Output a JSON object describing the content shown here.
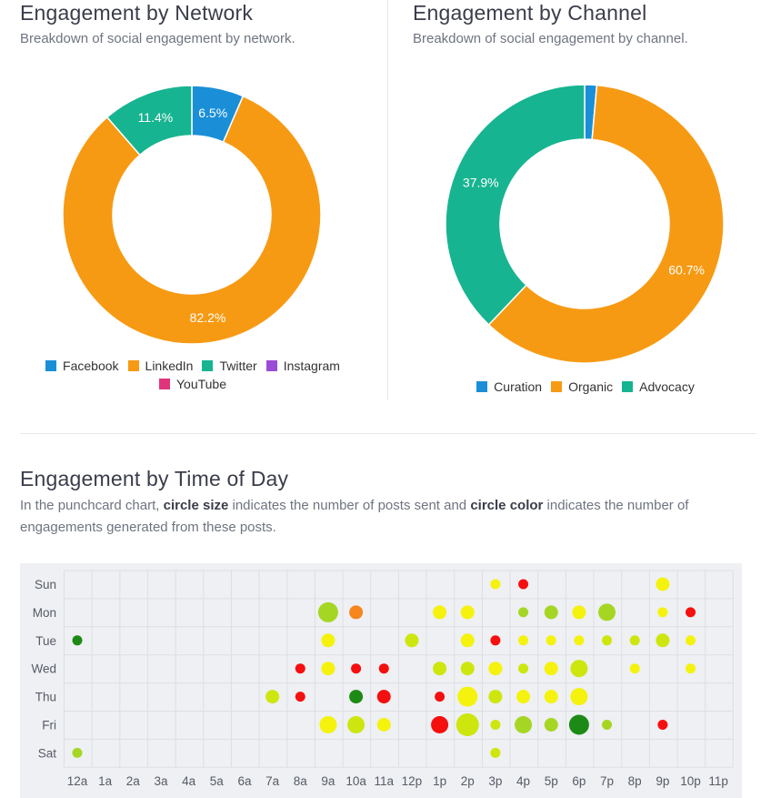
{
  "network": {
    "title": "Engagement by Network",
    "subtitle": "Breakdown of social engagement by network."
  },
  "channel": {
    "title": "Engagement by Channel",
    "subtitle": "Breakdown of social engagement by channel."
  },
  "time_of_day": {
    "title": "Engagement by Time of Day",
    "desc_1": "In the punchcard chart, ",
    "desc_bold_1": "circle size",
    "desc_2": " indicates the number of posts sent and ",
    "desc_bold_2": "circle color",
    "desc_3": " indicates the number of engagements generated from these posts."
  },
  "colors": {
    "facebook": "#1a8fd8",
    "linkedin": "#f79a13",
    "twitter": "#17b491",
    "instagram": "#9b4cd6",
    "youtube": "#e0357a",
    "red": "#f50f0f",
    "orange": "#f7861e",
    "yellow": "#f5f20e",
    "lime": "#cde60e",
    "yellowgreen": "#a6d624",
    "green": "#74b81f",
    "darkgreen": "#1e8a16"
  },
  "chart_data": [
    {
      "type": "pie",
      "variant": "donut",
      "title": "Engagement by Network",
      "legend": [
        "Facebook",
        "LinkedIn",
        "Twitter",
        "Instagram",
        "YouTube"
      ],
      "slices": [
        {
          "label": "Facebook",
          "value": 6.5,
          "display": "6.5%",
          "color": "#1a8fd8"
        },
        {
          "label": "LinkedIn",
          "value": 82.2,
          "display": "82.2%",
          "color": "#f79a13"
        },
        {
          "label": "Twitter",
          "value": 11.4,
          "display": "11.4%",
          "color": "#17b491"
        },
        {
          "label": "Instagram",
          "value": 0,
          "display": "",
          "color": "#9b4cd6"
        },
        {
          "label": "YouTube",
          "value": 0,
          "display": "",
          "color": "#e0357a"
        }
      ]
    },
    {
      "type": "pie",
      "variant": "donut",
      "title": "Engagement by Channel",
      "legend": [
        "Curation",
        "Organic",
        "Advocacy"
      ],
      "slices": [
        {
          "label": "Curation",
          "value": 1.4,
          "display": "",
          "color": "#1a8fd8"
        },
        {
          "label": "Organic",
          "value": 60.7,
          "display": "60.7%",
          "color": "#f79a13"
        },
        {
          "label": "Advocacy",
          "value": 37.9,
          "display": "37.9%",
          "color": "#17b491"
        }
      ]
    },
    {
      "type": "scatter",
      "variant": "punchcard",
      "title": "Engagement by Time of Day",
      "days": [
        "Sun",
        "Mon",
        "Tue",
        "Wed",
        "Thu",
        "Fri",
        "Sat"
      ],
      "hours": [
        "12a",
        "1a",
        "2a",
        "3a",
        "4a",
        "5a",
        "6a",
        "7a",
        "8a",
        "9a",
        "10a",
        "11a",
        "12p",
        "1p",
        "2p",
        "3p",
        "4p",
        "5p",
        "6p",
        "7p",
        "8p",
        "9p",
        "10p",
        "11p"
      ],
      "size_scale": "posts sent (1 = smallest, 5 = largest)",
      "points": [
        {
          "day": "Sun",
          "hour": "3p",
          "posts": 1,
          "engagement": "yellow"
        },
        {
          "day": "Sun",
          "hour": "4p",
          "posts": 1,
          "engagement": "red"
        },
        {
          "day": "Sun",
          "hour": "9p",
          "posts": 2,
          "engagement": "yellow"
        },
        {
          "day": "Mon",
          "hour": "9a",
          "posts": 4,
          "engagement": "yellowgreen"
        },
        {
          "day": "Mon",
          "hour": "10a",
          "posts": 2,
          "engagement": "orange"
        },
        {
          "day": "Mon",
          "hour": "1p",
          "posts": 2,
          "engagement": "yellow"
        },
        {
          "day": "Mon",
          "hour": "2p",
          "posts": 2,
          "engagement": "yellow"
        },
        {
          "day": "Mon",
          "hour": "4p",
          "posts": 1,
          "engagement": "yellowgreen"
        },
        {
          "day": "Mon",
          "hour": "5p",
          "posts": 2,
          "engagement": "yellowgreen"
        },
        {
          "day": "Mon",
          "hour": "6p",
          "posts": 2,
          "engagement": "yellow"
        },
        {
          "day": "Mon",
          "hour": "7p",
          "posts": 3,
          "engagement": "yellowgreen"
        },
        {
          "day": "Mon",
          "hour": "9p",
          "posts": 1,
          "engagement": "yellow"
        },
        {
          "day": "Mon",
          "hour": "10p",
          "posts": 1,
          "engagement": "red"
        },
        {
          "day": "Tue",
          "hour": "12a",
          "posts": 1,
          "engagement": "darkgreen"
        },
        {
          "day": "Tue",
          "hour": "9a",
          "posts": 2,
          "engagement": "yellow"
        },
        {
          "day": "Tue",
          "hour": "12p",
          "posts": 2,
          "engagement": "lime"
        },
        {
          "day": "Tue",
          "hour": "2p",
          "posts": 2,
          "engagement": "yellow"
        },
        {
          "day": "Tue",
          "hour": "3p",
          "posts": 1,
          "engagement": "red"
        },
        {
          "day": "Tue",
          "hour": "4p",
          "posts": 1,
          "engagement": "yellow"
        },
        {
          "day": "Tue",
          "hour": "5p",
          "posts": 1,
          "engagement": "yellow"
        },
        {
          "day": "Tue",
          "hour": "6p",
          "posts": 1,
          "engagement": "yellow"
        },
        {
          "day": "Tue",
          "hour": "7p",
          "posts": 1,
          "engagement": "lime"
        },
        {
          "day": "Tue",
          "hour": "8p",
          "posts": 1,
          "engagement": "lime"
        },
        {
          "day": "Tue",
          "hour": "9p",
          "posts": 2,
          "engagement": "lime"
        },
        {
          "day": "Tue",
          "hour": "10p",
          "posts": 1,
          "engagement": "yellow"
        },
        {
          "day": "Wed",
          "hour": "8a",
          "posts": 1,
          "engagement": "red"
        },
        {
          "day": "Wed",
          "hour": "9a",
          "posts": 2,
          "engagement": "yellow"
        },
        {
          "day": "Wed",
          "hour": "10a",
          "posts": 1,
          "engagement": "red"
        },
        {
          "day": "Wed",
          "hour": "11a",
          "posts": 1,
          "engagement": "red"
        },
        {
          "day": "Wed",
          "hour": "1p",
          "posts": 2,
          "engagement": "lime"
        },
        {
          "day": "Wed",
          "hour": "2p",
          "posts": 2,
          "engagement": "lime"
        },
        {
          "day": "Wed",
          "hour": "3p",
          "posts": 2,
          "engagement": "yellow"
        },
        {
          "day": "Wed",
          "hour": "4p",
          "posts": 1,
          "engagement": "lime"
        },
        {
          "day": "Wed",
          "hour": "5p",
          "posts": 2,
          "engagement": "yellow"
        },
        {
          "day": "Wed",
          "hour": "6p",
          "posts": 3,
          "engagement": "lime"
        },
        {
          "day": "Wed",
          "hour": "8p",
          "posts": 1,
          "engagement": "yellow"
        },
        {
          "day": "Wed",
          "hour": "10p",
          "posts": 1,
          "engagement": "yellow"
        },
        {
          "day": "Thu",
          "hour": "7a",
          "posts": 2,
          "engagement": "lime"
        },
        {
          "day": "Thu",
          "hour": "8a",
          "posts": 1,
          "engagement": "red"
        },
        {
          "day": "Thu",
          "hour": "10a",
          "posts": 2,
          "engagement": "darkgreen"
        },
        {
          "day": "Thu",
          "hour": "11a",
          "posts": 2,
          "engagement": "red"
        },
        {
          "day": "Thu",
          "hour": "1p",
          "posts": 1,
          "engagement": "red"
        },
        {
          "day": "Thu",
          "hour": "2p",
          "posts": 4,
          "engagement": "yellow"
        },
        {
          "day": "Thu",
          "hour": "3p",
          "posts": 2,
          "engagement": "lime"
        },
        {
          "day": "Thu",
          "hour": "4p",
          "posts": 2,
          "engagement": "yellow"
        },
        {
          "day": "Thu",
          "hour": "5p",
          "posts": 2,
          "engagement": "yellow"
        },
        {
          "day": "Thu",
          "hour": "6p",
          "posts": 3,
          "engagement": "yellow"
        },
        {
          "day": "Fri",
          "hour": "9a",
          "posts": 3,
          "engagement": "yellow"
        },
        {
          "day": "Fri",
          "hour": "10a",
          "posts": 3,
          "engagement": "lime"
        },
        {
          "day": "Fri",
          "hour": "11a",
          "posts": 2,
          "engagement": "yellow"
        },
        {
          "day": "Fri",
          "hour": "1p",
          "posts": 3,
          "engagement": "red"
        },
        {
          "day": "Fri",
          "hour": "2p",
          "posts": 5,
          "engagement": "lime"
        },
        {
          "day": "Fri",
          "hour": "3p",
          "posts": 1,
          "engagement": "lime"
        },
        {
          "day": "Fri",
          "hour": "4p",
          "posts": 3,
          "engagement": "yellowgreen"
        },
        {
          "day": "Fri",
          "hour": "5p",
          "posts": 2,
          "engagement": "yellowgreen"
        },
        {
          "day": "Fri",
          "hour": "6p",
          "posts": 4,
          "engagement": "darkgreen"
        },
        {
          "day": "Fri",
          "hour": "7p",
          "posts": 1,
          "engagement": "yellowgreen"
        },
        {
          "day": "Fri",
          "hour": "9p",
          "posts": 1,
          "engagement": "red"
        },
        {
          "day": "Sat",
          "hour": "12a",
          "posts": 1,
          "engagement": "yellowgreen"
        },
        {
          "day": "Sat",
          "hour": "3p",
          "posts": 1,
          "engagement": "lime"
        }
      ]
    }
  ]
}
